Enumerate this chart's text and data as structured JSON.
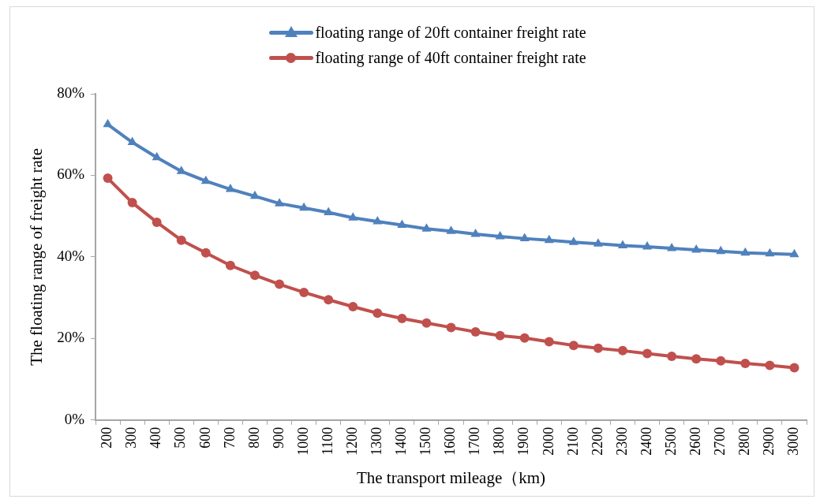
{
  "chart_data": {
    "type": "line",
    "xlabel": "The transport mileage（km)",
    "ylabel": "The floating range of freight rate",
    "categories": [
      "200",
      "300",
      "400",
      "500",
      "600",
      "700",
      "800",
      "900",
      "1000",
      "1100",
      "1200",
      "1300",
      "1400",
      "1500",
      "1600",
      "1700",
      "1800",
      "1900",
      "2000",
      "2100",
      "2200",
      "2300",
      "2400",
      "2500",
      "2600",
      "2700",
      "2800",
      "2900",
      "3000"
    ],
    "series": [
      {
        "name": "floating range of 20ft container freight rate",
        "color": "#4f81bd",
        "marker": "triangle",
        "values": [
          72.5,
          68.1,
          64.4,
          61.0,
          58.6,
          56.6,
          54.9,
          53.1,
          52.0,
          50.9,
          49.6,
          48.7,
          47.8,
          46.9,
          46.3,
          45.6,
          45.0,
          44.5,
          44.1,
          43.6,
          43.2,
          42.8,
          42.5,
          42.1,
          41.7,
          41.4,
          41.0,
          40.8,
          40.6
        ]
      },
      {
        "name": "floating range of 40ft container freight rate",
        "color": "#c0504d",
        "marker": "circle",
        "values": [
          59.3,
          53.3,
          48.5,
          44.1,
          41.0,
          37.9,
          35.5,
          33.3,
          31.3,
          29.5,
          27.8,
          26.2,
          24.9,
          23.8,
          22.7,
          21.6,
          20.7,
          20.1,
          19.2,
          18.3,
          17.6,
          17.0,
          16.3,
          15.6,
          15.0,
          14.5,
          13.9,
          13.4,
          12.8
        ]
      }
    ],
    "ylim": [
      0,
      80
    ],
    "yticks": [
      {
        "value": 0,
        "label": "0%"
      },
      {
        "value": 20,
        "label": "20%"
      },
      {
        "value": 40,
        "label": "40%"
      },
      {
        "value": 60,
        "label": "60%"
      },
      {
        "value": 80,
        "label": "80%"
      }
    ],
    "grid": false,
    "legend": "top",
    "line_style": "solid"
  }
}
